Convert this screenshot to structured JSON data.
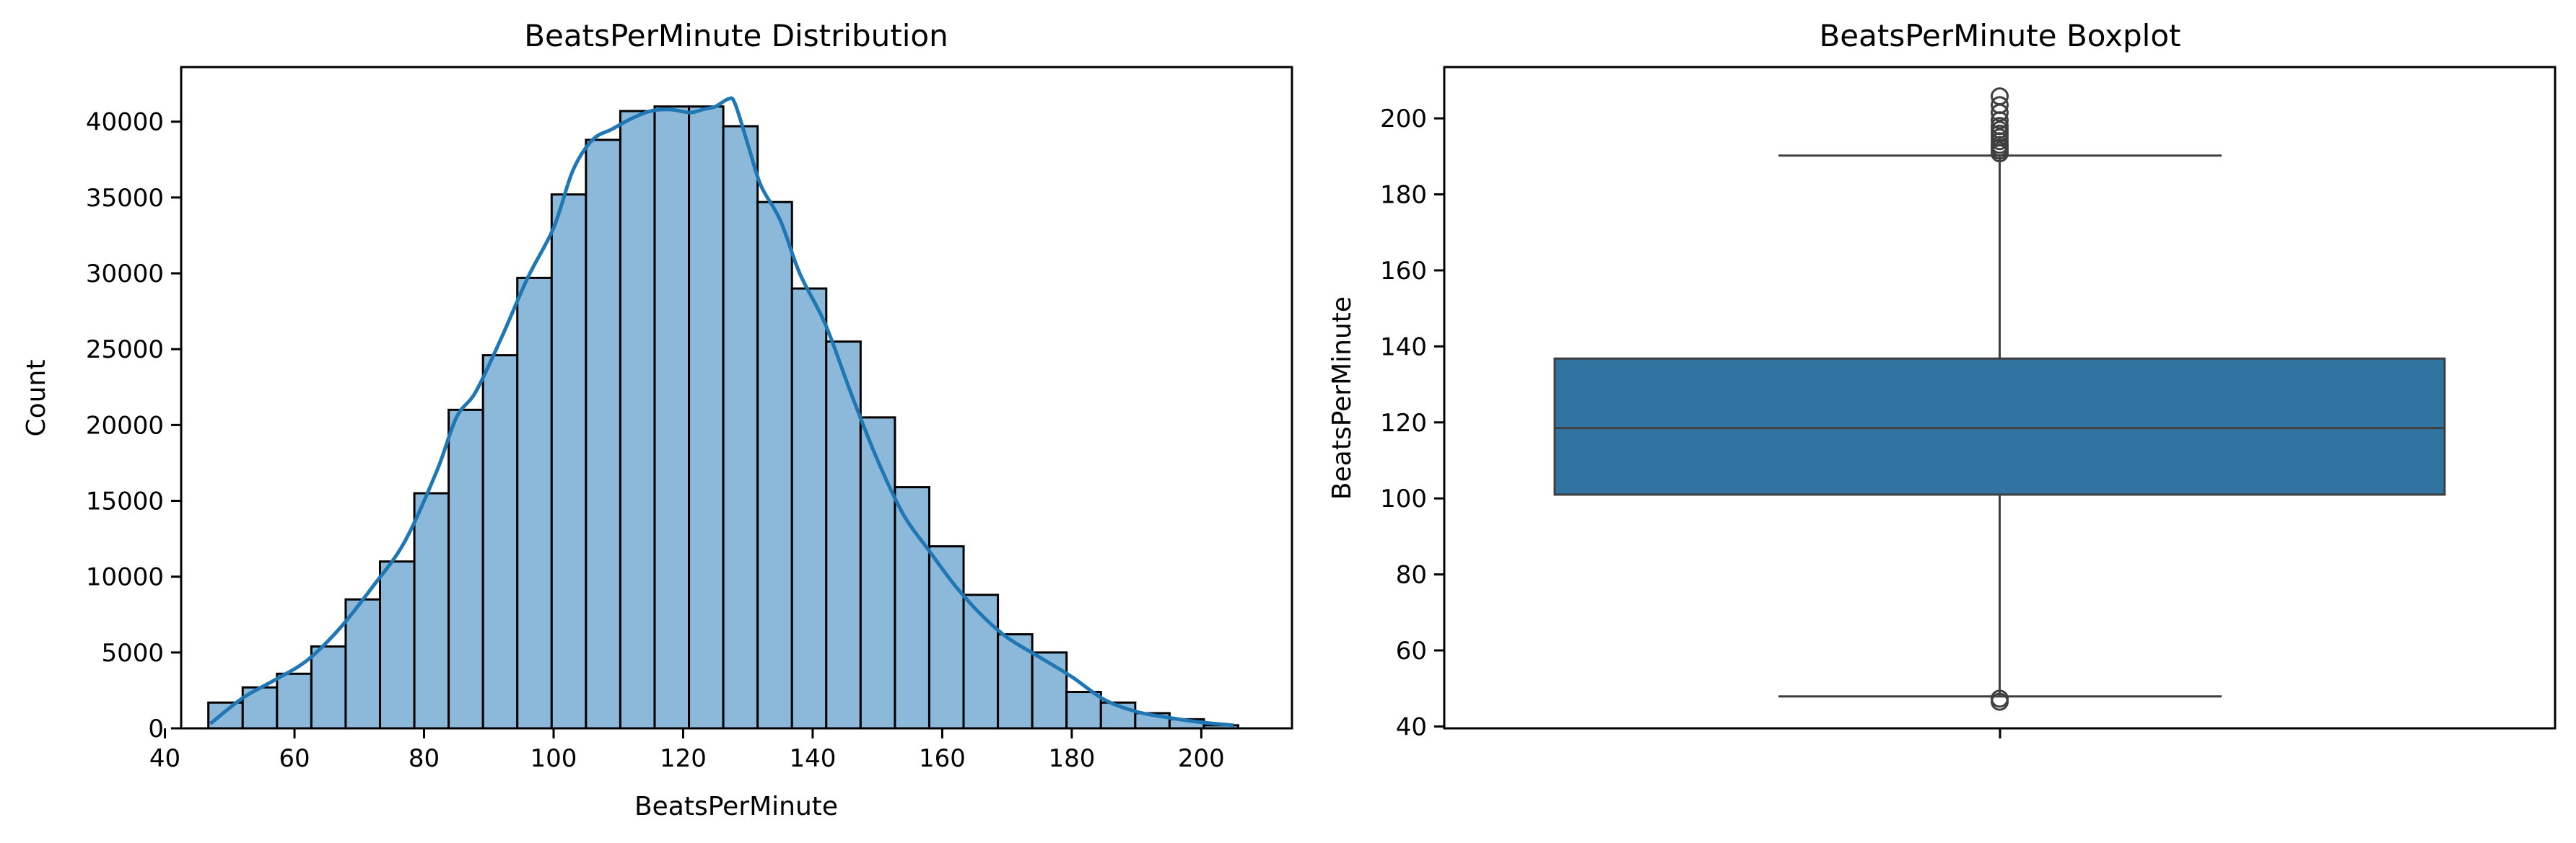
{
  "chart_data": [
    {
      "type": "bar",
      "title": "BeatsPerMinute Distribution",
      "xlabel": "BeatsPerMinute",
      "ylabel": "Count",
      "xlim": [
        42.5,
        214
      ],
      "ylim": [
        0,
        43600
      ],
      "xticks": [
        40,
        60,
        80,
        100,
        120,
        140,
        160,
        180,
        200
      ],
      "yticks": [
        0,
        5000,
        10000,
        15000,
        20000,
        25000,
        30000,
        35000,
        40000
      ],
      "bin_edges": [
        46.7,
        52.0,
        57.3,
        62.6,
        67.9,
        73.2,
        78.5,
        83.8,
        89.1,
        94.4,
        99.7,
        105.0,
        110.3,
        115.6,
        120.9,
        126.2,
        131.5,
        136.8,
        142.1,
        147.4,
        152.7,
        158.0,
        163.3,
        168.6,
        173.9,
        179.2,
        184.5,
        189.8,
        195.1,
        200.4,
        205.7
      ],
      "values": [
        1700,
        2700,
        3600,
        5400,
        8500,
        11000,
        15500,
        21000,
        24600,
        29700,
        35200,
        38800,
        40700,
        41000,
        41000,
        39700,
        34700,
        29000,
        25500,
        20500,
        15900,
        12000,
        8800,
        6200,
        5000,
        2400,
        1700,
        1000,
        600,
        200
      ],
      "kde": {
        "x": [
          47,
          52,
          57,
          62,
          67,
          72,
          77,
          82,
          85,
          88,
          92,
          96,
          100,
          103,
          106,
          109,
          112,
          115,
          118,
          121,
          123,
          125,
          127,
          128,
          130,
          132,
          135,
          138,
          142,
          146,
          150,
          154,
          158,
          162,
          166,
          170,
          175,
          180,
          185,
          190,
          195,
          200,
          205
        ],
        "y": [
          300,
          2000,
          3200,
          4500,
          6600,
          9300,
          12300,
          17000,
          20500,
          22200,
          25800,
          29700,
          33000,
          36800,
          38800,
          39500,
          40200,
          40700,
          40800,
          40600,
          40800,
          41000,
          41500,
          41200,
          38500,
          35800,
          33500,
          30000,
          26600,
          22000,
          17700,
          14100,
          11700,
          9400,
          7500,
          6000,
          4700,
          3400,
          1900,
          1100,
          700,
          400,
          200
        ]
      },
      "color": "#1f77b4",
      "bar_fill": "#8cb8da",
      "grid": false
    },
    {
      "type": "boxplot",
      "title": "BeatsPerMinute Boxplot",
      "xlabel": "",
      "ylabel": "BeatsPerMinute",
      "ylim": [
        39.5,
        213.5
      ],
      "yticks": [
        40,
        60,
        80,
        100,
        120,
        140,
        160,
        180,
        200
      ],
      "box": {
        "q1": 101,
        "median": 118.5,
        "q3": 136.8,
        "whisker_low": 47.9,
        "whisker_high": 190.2
      },
      "outliers_high": [
        190.8,
        191.5,
        192.3,
        193.0,
        194.0,
        195.0,
        196.0,
        197.0,
        198.0,
        199.5,
        201.5,
        203.5,
        205.8
      ],
      "outliers_low": [
        46.5,
        47.3
      ],
      "color": "#3274a1",
      "grid": false
    }
  ]
}
